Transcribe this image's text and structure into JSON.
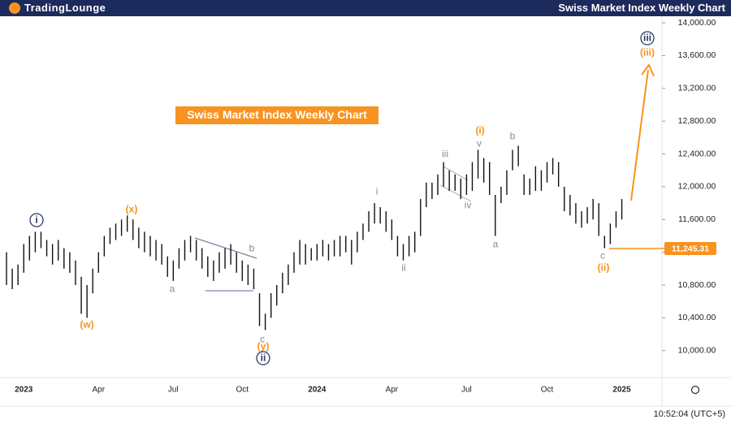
{
  "brand": "TradingLounge",
  "timestamp": "10:52:04 (UTC+5)",
  "chart_data": {
    "type": "range_bar",
    "title": "Swiss Market Index Weekly Chart",
    "color": "#111111",
    "categories": [
      null,
      null,
      null,
      "2023",
      null,
      null,
      null,
      null,
      null,
      null,
      null,
      null,
      null,
      null,
      null,
      null,
      "Apr",
      null,
      null,
      null,
      null,
      null,
      null,
      null,
      null,
      null,
      null,
      null,
      null,
      "Jul",
      null,
      null,
      null,
      null,
      null,
      null,
      null,
      null,
      null,
      null,
      null,
      "Oct",
      null,
      null,
      null,
      null,
      null,
      null,
      null,
      null,
      null,
      null,
      null,
      null,
      "2024",
      null,
      null,
      null,
      null,
      null,
      null,
      null,
      null,
      null,
      null,
      null,
      null,
      "Apr",
      null,
      null,
      null,
      null,
      null,
      null,
      null,
      null,
      null,
      null,
      null,
      null,
      "Jul",
      null,
      null,
      null,
      null,
      null,
      null,
      null,
      null,
      null,
      null,
      null,
      null,
      null,
      "Oct",
      null,
      null,
      null,
      null,
      null,
      null,
      null,
      null,
      null,
      null,
      null,
      null,
      "2025"
    ],
    "high": [
      11200,
      11000,
      11050,
      11300,
      11400,
      11450,
      11450,
      11350,
      11300,
      11350,
      11250,
      11200,
      11100,
      10900,
      10800,
      11000,
      11200,
      11400,
      11500,
      11550,
      11600,
      11650,
      11600,
      11500,
      11450,
      11400,
      11350,
      11300,
      11150,
      11100,
      11250,
      11350,
      11400,
      11350,
      11250,
      11150,
      11100,
      11200,
      11250,
      11300,
      11200,
      11100,
      11050,
      11000,
      10700,
      10450,
      10700,
      10800,
      10950,
      11050,
      11200,
      11350,
      11300,
      11250,
      11300,
      11350,
      11300,
      11350,
      11400,
      11400,
      11350,
      11450,
      11550,
      11700,
      11800,
      11750,
      11700,
      11600,
      11400,
      11300,
      11400,
      11450,
      11850,
      12050,
      12050,
      12150,
      12300,
      12200,
      12150,
      12100,
      12150,
      12300,
      12450,
      12350,
      12300,
      11900,
      12000,
      12200,
      12450,
      12500,
      12150,
      12100,
      12250,
      12200,
      12300,
      12350,
      12300,
      12000,
      11900,
      11800,
      11700,
      11750,
      11850,
      11800,
      11400,
      11550,
      11700,
      11850
    ],
    "low": [
      10800,
      10750,
      10800,
      10950,
      11100,
      11200,
      11250,
      11150,
      11050,
      11100,
      11000,
      10950,
      10800,
      10450,
      10400,
      10700,
      10950,
      11150,
      11300,
      11350,
      11400,
      11450,
      11350,
      11250,
      11200,
      11150,
      11100,
      11050,
      10900,
      10850,
      11000,
      11100,
      11200,
      11100,
      11000,
      10900,
      10850,
      10950,
      11000,
      11050,
      10950,
      10850,
      10800,
      10750,
      10300,
      10250,
      10400,
      10550,
      10700,
      10800,
      10950,
      11050,
      11050,
      11100,
      11100,
      11150,
      11100,
      11150,
      11150,
      11200,
      11050,
      11200,
      11350,
      11450,
      11550,
      11550,
      11450,
      11350,
      11150,
      11100,
      11150,
      11200,
      11400,
      11750,
      11850,
      11900,
      12000,
      11950,
      11950,
      11850,
      11900,
      11950,
      12100,
      12050,
      11900,
      11400,
      11800,
      11900,
      12200,
      12250,
      11900,
      11900,
      11950,
      11950,
      12050,
      12150,
      12000,
      11700,
      11650,
      11550,
      11500,
      11550,
      11600,
      11400,
      11250,
      11300,
      11500,
      11600
    ],
    "ylim": [
      9670,
      14080
    ],
    "yticks": [
      {
        "value": 10000,
        "label": "10,000.00"
      },
      {
        "value": 10400,
        "label": "10,400.00"
      },
      {
        "value": 10800,
        "label": "10,800.00"
      },
      {
        "value": 11200,
        "label": "11,200.00"
      },
      {
        "value": 11600,
        "label": "11,600.00"
      },
      {
        "value": 12000,
        "label": "12,000.00"
      },
      {
        "value": 12400,
        "label": "12,400.00"
      },
      {
        "value": 12800,
        "label": "12,800.00"
      },
      {
        "value": 13200,
        "label": "13,200.00"
      },
      {
        "value": 13600,
        "label": "13,600.00"
      },
      {
        "value": 14000,
        "label": "14,000.00"
      }
    ],
    "last_price": {
      "value": 11245.31,
      "label": "11,245.31",
      "color": "#f7931e"
    },
    "annotations": [
      {
        "text": "i",
        "color": "#2b3a67",
        "circled": true
      },
      {
        "text": "(w)",
        "color": "#f7931e"
      },
      {
        "text": "(x)",
        "color": "#f7931e"
      },
      {
        "text": "a",
        "color": "#8a8a8a"
      },
      {
        "text": "b",
        "color": "#8a8a8a"
      },
      {
        "text": "c",
        "color": "#8a8a8a"
      },
      {
        "text": "(y)",
        "color": "#f7931e"
      },
      {
        "text": "ii",
        "color": "#2b3a67",
        "circled": true
      },
      {
        "text": "i",
        "color": "#8a8a8a"
      },
      {
        "text": "ii",
        "color": "#8a8a8a"
      },
      {
        "text": "iii",
        "color": "#8a8a8a"
      },
      {
        "text": "iv",
        "color": "#8a8a8a"
      },
      {
        "text": "v",
        "color": "#8a8a8a"
      },
      {
        "text": "(i)",
        "color": "#f7931e"
      },
      {
        "text": "a",
        "color": "#8a8a8a"
      },
      {
        "text": "b",
        "color": "#8a8a8a"
      },
      {
        "text": "c",
        "color": "#8a8a8a"
      },
      {
        "text": "(ii)",
        "color": "#f7931e"
      },
      {
        "text": "iii",
        "color": "#2b3a67",
        "circled": true
      },
      {
        "text": "(iii)",
        "color": "#f7931e"
      }
    ]
  }
}
